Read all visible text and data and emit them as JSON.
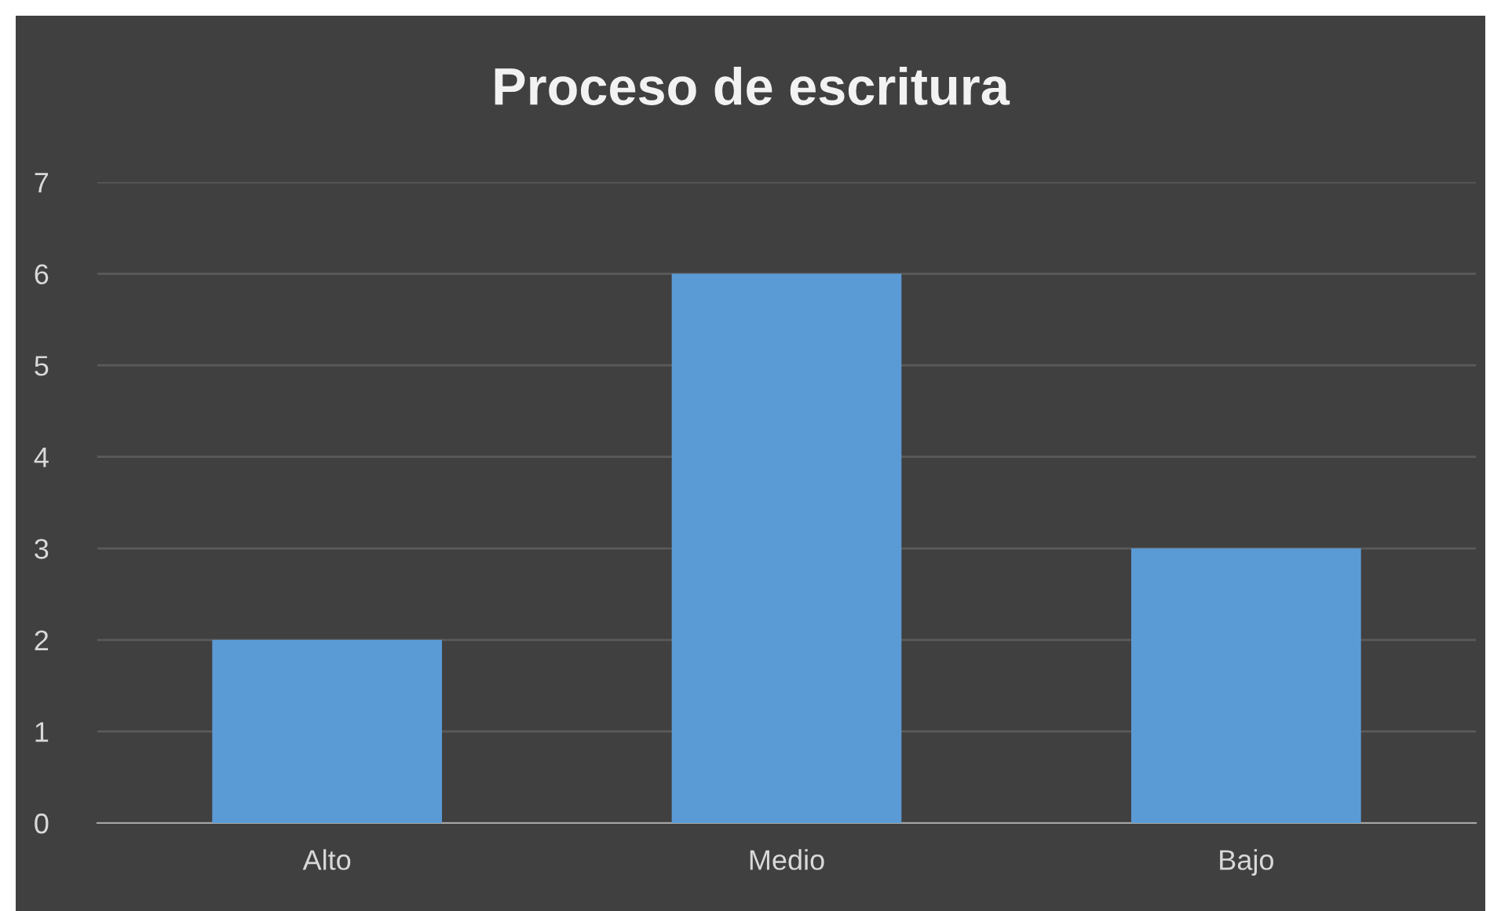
{
  "chart_data": {
    "type": "bar",
    "title": "Proceso de escritura",
    "categories": [
      "Alto",
      "Medio",
      "Bajo"
    ],
    "values": [
      2,
      6,
      3
    ],
    "color": "#5b9bd5",
    "ylim": [
      0,
      7
    ],
    "yticks": [
      0,
      1,
      2,
      3,
      4,
      5,
      6,
      7
    ],
    "grid": "y"
  }
}
